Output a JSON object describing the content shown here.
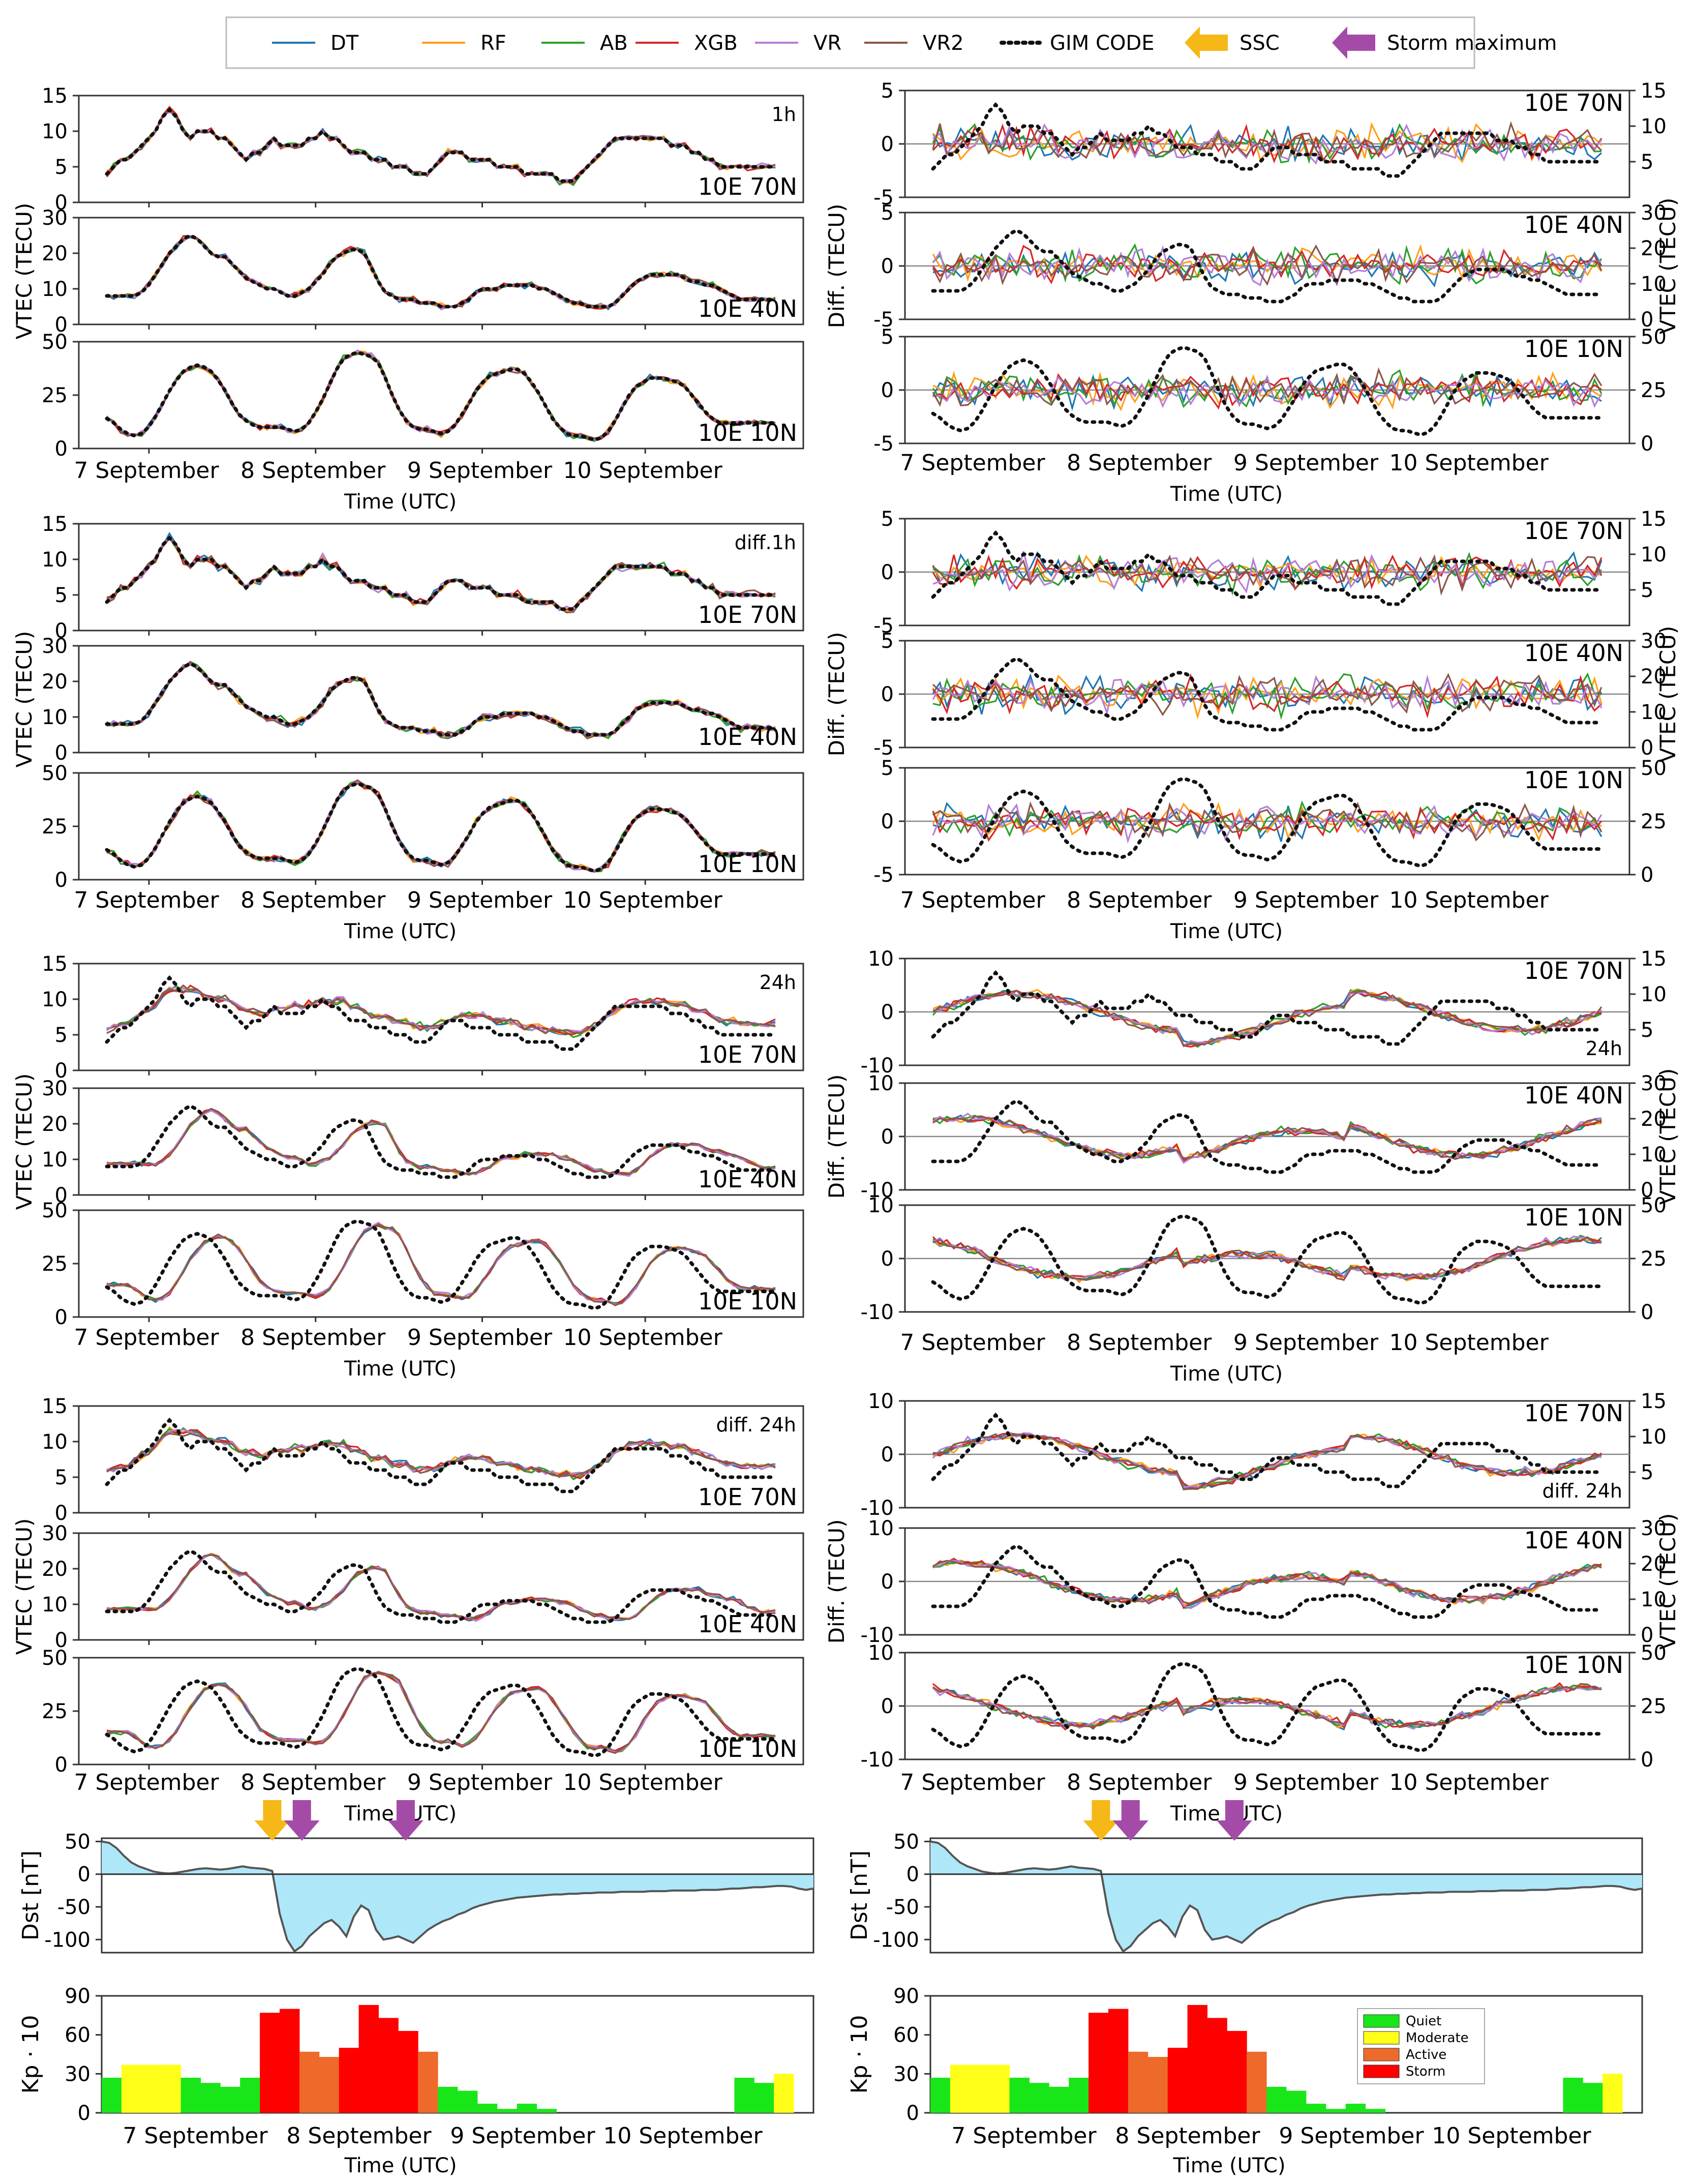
{
  "legend": {
    "entries": [
      {
        "label": "DT",
        "color": "#1f77b4",
        "style": "line"
      },
      {
        "label": "RF",
        "color": "#ff9f1a",
        "style": "line"
      },
      {
        "label": "AB",
        "color": "#2ca02c",
        "style": "line"
      },
      {
        "label": "XGB",
        "color": "#d62728",
        "style": "line"
      },
      {
        "label": "VR",
        "color": "#b47fd8",
        "style": "line"
      },
      {
        "label": "VR2",
        "color": "#8c564b",
        "style": "line"
      },
      {
        "label": "GIM CODE",
        "color": "#111111",
        "style": "dotted"
      },
      {
        "label": "SSC",
        "color": "#f6b817",
        "style": "arrow"
      },
      {
        "label": "Storm maximum",
        "color": "#a44ba8",
        "style": "arrow"
      }
    ]
  },
  "common": {
    "date_labels": [
      "7 September",
      "8 September",
      "9 September",
      "10 September"
    ],
    "time_label": "Time (UTC)",
    "vtec_label": "VTEC (TECU)",
    "diff_label": "Diff. (TECU)",
    "dst_label": "Dst [nT]",
    "kp_label": "Kp · 10",
    "stations": [
      "10E 70N",
      "10E 40N",
      "10E 10N"
    ]
  },
  "kp_legend": [
    {
      "label": "Quiet",
      "color": "#19e619"
    },
    {
      "label": "Moderate",
      "color": "#ffff1a"
    },
    {
      "label": "Active",
      "color": "#ee6a2a"
    },
    {
      "label": "Storm",
      "color": "#ff0000"
    }
  ],
  "chart_data": {
    "type": "line",
    "title": "",
    "x_range_hours": [
      0,
      96
    ],
    "block_tags": [
      "1h",
      "diff.1h",
      "24h",
      "diff. 24h"
    ],
    "vtec_panels": {
      "10E 70N": {
        "ylim": [
          0,
          15
        ],
        "yticks": [
          0,
          5,
          10,
          15
        ]
      },
      "10E 40N": {
        "ylim": [
          0,
          30
        ],
        "yticks": [
          0,
          10,
          20,
          30
        ]
      },
      "10E 10N": {
        "ylim": [
          0,
          50
        ],
        "yticks": [
          0,
          25,
          50
        ]
      }
    },
    "diff_panels_1h": {
      "ylim": [
        -5,
        5
      ],
      "yticks": [
        -5,
        0,
        5
      ]
    },
    "diff_panels_24h": {
      "ylim": [
        -10,
        10
      ],
      "yticks": [
        -10,
        0,
        10
      ]
    },
    "gim_right_axis": {
      "10E 70N": [
        5,
        10,
        15
      ],
      "10E 40N": [
        0,
        10,
        20,
        30
      ],
      "10E 10N": [
        0,
        25,
        50
      ]
    },
    "gim_code_vtec": {
      "10E 70N": [
        4,
        5,
        6,
        6,
        7,
        8,
        9,
        10,
        12,
        13,
        12,
        10,
        9,
        10,
        10,
        10,
        9,
        9,
        8,
        7,
        6,
        7,
        7,
        8,
        9,
        8,
        8,
        8,
        8,
        9,
        9,
        10,
        9,
        9,
        8,
        7,
        7,
        7,
        6,
        6,
        6,
        5,
        5,
        5,
        4,
        4,
        4,
        5,
        6,
        7,
        7,
        7,
        6,
        6,
        6,
        6,
        5,
        5,
        5,
        5,
        4,
        4,
        4,
        4,
        4,
        3,
        3,
        3,
        4,
        5,
        6,
        7,
        8,
        9,
        9,
        9,
        9,
        9,
        9,
        9,
        9,
        8,
        8,
        8,
        7,
        7,
        6,
        6,
        5,
        5,
        5,
        5,
        5,
        5,
        5,
        5,
        5
      ],
      "10E 40N": [
        8,
        8,
        8,
        8,
        8,
        9,
        11,
        14,
        17,
        20,
        22,
        24,
        25,
        24,
        22,
        20,
        19,
        19,
        17,
        15,
        13,
        12,
        11,
        10,
        10,
        9,
        8,
        8,
        9,
        10,
        12,
        14,
        17,
        19,
        20,
        21,
        21,
        20,
        16,
        12,
        9,
        8,
        7,
        7,
        7,
        6,
        6,
        6,
        5,
        5,
        5,
        6,
        7,
        9,
        10,
        10,
        10,
        11,
        11,
        11,
        11,
        11,
        10,
        10,
        9,
        8,
        7,
        6,
        6,
        5,
        5,
        5,
        5,
        6,
        8,
        10,
        12,
        13,
        14,
        14,
        14,
        14,
        14,
        13,
        12,
        12,
        11,
        11,
        10,
        9,
        8,
        7,
        7,
        7,
        7,
        7,
        7
      ],
      "10E 10N": [
        14,
        12,
        9,
        7,
        6,
        7,
        10,
        15,
        21,
        27,
        32,
        36,
        38,
        39,
        38,
        36,
        32,
        27,
        21,
        16,
        13,
        11,
        10,
        10,
        10,
        10,
        9,
        8,
        9,
        12,
        17,
        23,
        30,
        37,
        42,
        44,
        45,
        44,
        43,
        40,
        33,
        25,
        18,
        13,
        10,
        9,
        9,
        8,
        7,
        8,
        11,
        16,
        21,
        27,
        31,
        34,
        35,
        36,
        37,
        37,
        35,
        31,
        26,
        20,
        14,
        10,
        7,
        6,
        6,
        5,
        4,
        5,
        8,
        13,
        19,
        25,
        29,
        31,
        33,
        33,
        33,
        32,
        31,
        29,
        25,
        21,
        17,
        14,
        12,
        12,
        12,
        12,
        12,
        12,
        12,
        12,
        12
      ]
    },
    "model_series": [
      "DT",
      "RF",
      "AB",
      "XGB",
      "VR",
      "VR2"
    ],
    "dst": {
      "ylim": [
        -120,
        55
      ],
      "yticks": [
        50,
        0,
        -50,
        -100
      ],
      "values": [
        50,
        48,
        40,
        28,
        18,
        12,
        8,
        4,
        2,
        1,
        2,
        4,
        6,
        8,
        9,
        8,
        7,
        8,
        10,
        12,
        10,
        9,
        8,
        5,
        -60,
        -100,
        -118,
        -110,
        -95,
        -85,
        -75,
        -70,
        -80,
        -95,
        -65,
        -48,
        -55,
        -85,
        -100,
        -98,
        -95,
        -100,
        -105,
        -95,
        -85,
        -78,
        -72,
        -68,
        -62,
        -58,
        -52,
        -48,
        -45,
        -42,
        -40,
        -38,
        -36,
        -35,
        -34,
        -33,
        -32,
        -31,
        -31,
        -30,
        -30,
        -29,
        -29,
        -28,
        -28,
        -28,
        -27,
        -27,
        -27,
        -27,
        -26,
        -26,
        -26,
        -25,
        -25,
        -25,
        -25,
        -24,
        -24,
        -24,
        -23,
        -22,
        -22,
        -21,
        -20,
        -20,
        -19,
        -18,
        -18,
        -19,
        -22,
        -24,
        -22
      ],
      "ssc_hour": 23,
      "storm_maximum_hours": [
        27,
        41
      ]
    },
    "kp": {
      "ylim": [
        0,
        90
      ],
      "yticks": [
        0,
        30,
        60,
        90
      ],
      "values": [
        27,
        37,
        37,
        37,
        27,
        23,
        20,
        27,
        77,
        80,
        47,
        43,
        50,
        83,
        73,
        63,
        47,
        20,
        17,
        7,
        3,
        7,
        3,
        0,
        0,
        0,
        0,
        0,
        0,
        0,
        0,
        0,
        27,
        23,
        30
      ],
      "category_thresholds": {
        "Quiet": "< 30",
        "Moderate": "30-39",
        "Active": "40-49",
        "Storm": ">= 50"
      }
    }
  }
}
